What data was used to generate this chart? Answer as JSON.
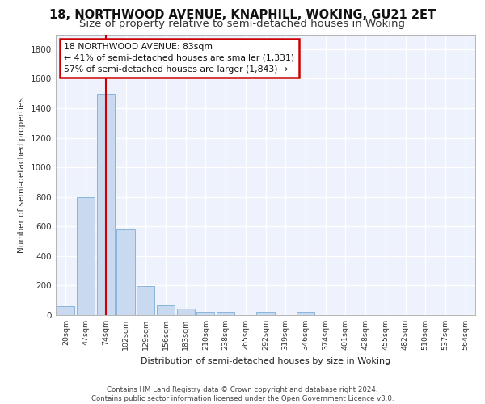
{
  "title": "18, NORTHWOOD AVENUE, KNAPHILL, WOKING, GU21 2ET",
  "subtitle": "Size of property relative to semi-detached houses in Woking",
  "xlabel": "Distribution of semi-detached houses by size in Woking",
  "ylabel": "Number of semi-detached properties",
  "categories": [
    "20sqm",
    "47sqm",
    "74sqm",
    "102sqm",
    "129sqm",
    "156sqm",
    "183sqm",
    "210sqm",
    "238sqm",
    "265sqm",
    "292sqm",
    "319sqm",
    "346sqm",
    "374sqm",
    "401sqm",
    "428sqm",
    "455sqm",
    "482sqm",
    "510sqm",
    "537sqm",
    "564sqm"
  ],
  "values": [
    60,
    800,
    1500,
    580,
    195,
    65,
    45,
    20,
    20,
    0,
    20,
    0,
    20,
    0,
    0,
    0,
    0,
    0,
    0,
    0,
    0
  ],
  "bar_color": "#c9d9f0",
  "bar_edge_color": "#7aaed6",
  "red_line_index": 2,
  "annotation_text": "18 NORTHWOOD AVENUE: 83sqm\n← 41% of semi-detached houses are smaller (1,331)\n57% of semi-detached houses are larger (1,843) →",
  "annotation_box_color": "#ffffff",
  "annotation_box_edge": "#cc0000",
  "ylim": [
    0,
    1900
  ],
  "yticks": [
    0,
    200,
    400,
    600,
    800,
    1000,
    1200,
    1400,
    1600,
    1800
  ],
  "footer": "Contains HM Land Registry data © Crown copyright and database right 2024.\nContains public sector information licensed under the Open Government Licence v3.0.",
  "bg_color": "#eef2fc",
  "grid_color": "#ffffff",
  "title_fontsize": 10.5,
  "subtitle_fontsize": 9.5
}
